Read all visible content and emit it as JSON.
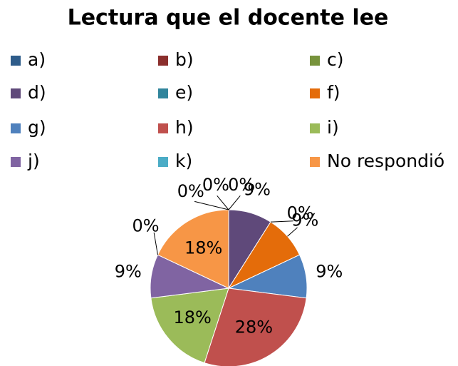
{
  "chart_data": {
    "type": "pie",
    "title": "Lectura que el docente lee",
    "categories": [
      "a)",
      "b)",
      "c)",
      "d)",
      "e)",
      "f)",
      "g)",
      "h)",
      "i)",
      "j)",
      "k)",
      "No respondió"
    ],
    "values": [
      0,
      0,
      0,
      9,
      0,
      9,
      9,
      28,
      18,
      9,
      0,
      18
    ],
    "value_labels": [
      "0%",
      "0%",
      "0%",
      "9%",
      "0%",
      "9%",
      "9%",
      "28%",
      "18%",
      "9%",
      "0%",
      "18%"
    ],
    "colors": [
      "#2e5c8a",
      "#8b2f2d",
      "#77933c",
      "#5f497a",
      "#31859c",
      "#e46c0a",
      "#4f81bd",
      "#c0504d",
      "#9bbb59",
      "#8064a2",
      "#4bacc6",
      "#f79646"
    ],
    "legend": "top"
  }
}
